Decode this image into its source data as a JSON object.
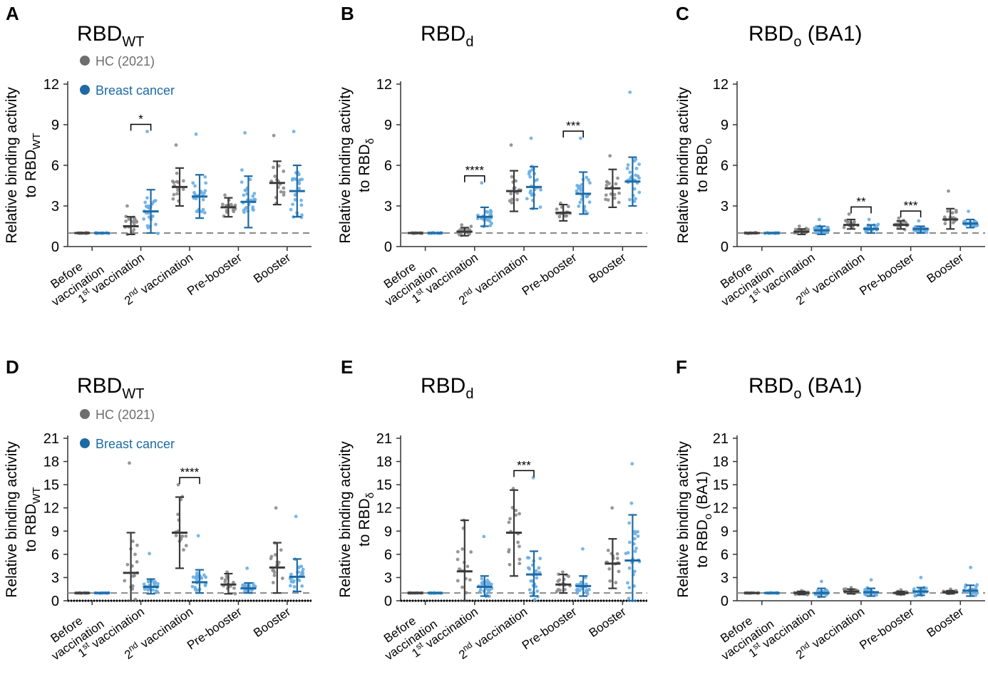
{
  "legend": {
    "hc_label": "HC (2021)",
    "bc_label": "Breast cancer"
  },
  "colors": {
    "hc_point": "#8c8c8c",
    "hc_bar": "#3a3a3a",
    "bc_point": "#6aaee3",
    "bc_bar": "#1d6aa5",
    "axis": "#333333",
    "ref_line": "#8a8a8a",
    "legend_hc": "#6e6e6e",
    "legend_bc": "#1d6aa5"
  },
  "chart_data": [
    {
      "letter": "A",
      "type": "scatter",
      "title_main": "RBD",
      "title_sub": "WT",
      "title_tail": "",
      "ylabel_line1": "Relative binding activity",
      "ylabel_line2_main": "to RBD",
      "ylabel_line2_sub": "WT",
      "ylabel_line2_tail": "",
      "yticks": [
        "0",
        "3",
        "6",
        "9",
        "12"
      ],
      "ylim": [
        0,
        12
      ],
      "show_legend": true,
      "zero_dotted": false,
      "groups": [
        {
          "label": "Before vaccination",
          "hc": {
            "mean": 1.0,
            "lo": 1.0,
            "hi": 1.0,
            "max": 1.0
          },
          "bc": {
            "mean": 1.0,
            "lo": 1.0,
            "hi": 1.0,
            "max": 1.0
          }
        },
        {
          "label": "1st vaccination",
          "hc": {
            "mean": 1.5,
            "lo": 0.9,
            "hi": 2.2,
            "max": 3.0
          },
          "bc": {
            "mean": 2.6,
            "lo": 1.0,
            "hi": 4.2,
            "max": 8.5
          },
          "sig": "*"
        },
        {
          "label": "2nd vaccination",
          "hc": {
            "mean": 4.4,
            "lo": 3.0,
            "hi": 5.8,
            "max": 7.5
          },
          "bc": {
            "mean": 3.7,
            "lo": 2.1,
            "hi": 5.3,
            "max": 8.3
          }
        },
        {
          "label": "Pre-booster",
          "hc": {
            "mean": 2.9,
            "lo": 2.2,
            "hi": 3.6,
            "max": 3.8
          },
          "bc": {
            "mean": 3.3,
            "lo": 1.4,
            "hi": 5.2,
            "max": 8.4
          }
        },
        {
          "label": "Booster",
          "hc": {
            "mean": 4.7,
            "lo": 3.1,
            "hi": 6.3,
            "max": 8.2
          },
          "bc": {
            "mean": 4.1,
            "lo": 2.2,
            "hi": 6.0,
            "max": 8.5
          }
        }
      ]
    },
    {
      "letter": "B",
      "type": "scatter",
      "title_main": "RBD",
      "title_sub": "d",
      "title_tail": "",
      "ylabel_line1": "Relative binding activity",
      "ylabel_line2_main": "to RBD",
      "ylabel_line2_sub": "δ",
      "ylabel_line2_tail": "",
      "yticks": [
        "0",
        "3",
        "6",
        "9",
        "12"
      ],
      "ylim": [
        0,
        12
      ],
      "show_legend": false,
      "zero_dotted": false,
      "groups": [
        {
          "label": "Before vaccination",
          "hc": {
            "mean": 1.0,
            "lo": 1.0,
            "hi": 1.0,
            "max": 1.0
          },
          "bc": {
            "mean": 1.0,
            "lo": 1.0,
            "hi": 1.0,
            "max": 1.0
          }
        },
        {
          "label": "1st vaccination",
          "hc": {
            "mean": 1.1,
            "lo": 0.8,
            "hi": 1.4,
            "max": 1.6
          },
          "bc": {
            "mean": 2.2,
            "lo": 1.5,
            "hi": 2.9,
            "max": 4.7
          },
          "sig": "****"
        },
        {
          "label": "2nd vaccination",
          "hc": {
            "mean": 4.1,
            "lo": 2.6,
            "hi": 5.6,
            "max": 7.5
          },
          "bc": {
            "mean": 4.4,
            "lo": 2.8,
            "hi": 5.9,
            "max": 8.0
          }
        },
        {
          "label": "Pre-booster",
          "hc": {
            "mean": 2.5,
            "lo": 1.9,
            "hi": 3.1,
            "max": 3.2
          },
          "bc": {
            "mean": 3.9,
            "lo": 2.4,
            "hi": 5.5,
            "max": 8.0
          },
          "sig": "***"
        },
        {
          "label": "Booster",
          "hc": {
            "mean": 4.3,
            "lo": 2.9,
            "hi": 5.7,
            "max": 6.7
          },
          "bc": {
            "mean": 4.8,
            "lo": 3.0,
            "hi": 6.6,
            "max": 11.4
          }
        }
      ]
    },
    {
      "letter": "C",
      "type": "scatter",
      "title_main": "RBD",
      "title_sub": "o",
      "title_tail": " (BA1)",
      "ylabel_line1": "Relative binding activity",
      "ylabel_line2_main": "to RBD",
      "ylabel_line2_sub": "o",
      "ylabel_line2_tail": "",
      "yticks": [
        "0",
        "3",
        "6",
        "9",
        "12"
      ],
      "ylim": [
        0,
        12
      ],
      "show_legend": false,
      "zero_dotted": false,
      "groups": [
        {
          "label": "Before vaccination",
          "hc": {
            "mean": 1.0,
            "lo": 1.0,
            "hi": 1.0,
            "max": 1.0
          },
          "bc": {
            "mean": 1.0,
            "lo": 1.0,
            "hi": 1.0,
            "max": 1.0
          }
        },
        {
          "label": "1st vaccination",
          "hc": {
            "mean": 1.1,
            "lo": 0.9,
            "hi": 1.3,
            "max": 1.5
          },
          "bc": {
            "mean": 1.2,
            "lo": 0.9,
            "hi": 1.5,
            "max": 2.0
          }
        },
        {
          "label": "2nd vaccination",
          "hc": {
            "mean": 1.6,
            "lo": 1.3,
            "hi": 2.0,
            "max": 2.4
          },
          "bc": {
            "mean": 1.3,
            "lo": 1.0,
            "hi": 1.6,
            "max": 2.0
          },
          "sig": "**"
        },
        {
          "label": "Pre-booster",
          "hc": {
            "mean": 1.6,
            "lo": 1.3,
            "hi": 1.9,
            "max": 2.1
          },
          "bc": {
            "mean": 1.3,
            "lo": 1.0,
            "hi": 1.5,
            "max": 1.9
          },
          "sig": "***"
        },
        {
          "label": "Booster",
          "hc": {
            "mean": 2.0,
            "lo": 1.3,
            "hi": 2.8,
            "max": 4.1
          },
          "bc": {
            "mean": 1.7,
            "lo": 1.4,
            "hi": 2.0,
            "max": 2.6
          }
        }
      ]
    },
    {
      "letter": "D",
      "type": "scatter",
      "title_main": "RBD",
      "title_sub": "WT",
      "title_tail": "",
      "ylabel_line1": "Relative binding activity",
      "ylabel_line2_main": "to RBD",
      "ylabel_line2_sub": "WT",
      "ylabel_line2_tail": "",
      "yticks": [
        "0",
        "3",
        "6",
        "9",
        "12",
        "15",
        "18",
        "21"
      ],
      "ylim": [
        0,
        21
      ],
      "show_legend": true,
      "zero_dotted": true,
      "groups": [
        {
          "label": "Before vaccination",
          "hc": {
            "mean": 1.0,
            "lo": 1.0,
            "hi": 1.0,
            "max": 1.0
          },
          "bc": {
            "mean": 1.0,
            "lo": 1.0,
            "hi": 1.0,
            "max": 1.0
          }
        },
        {
          "label": "1st vaccination",
          "hc": {
            "mean": 3.6,
            "lo": 0.0,
            "hi": 8.8,
            "max": 17.8
          },
          "bc": {
            "mean": 1.8,
            "lo": 0.9,
            "hi": 2.8,
            "max": 6.1
          }
        },
        {
          "label": "2nd vaccination",
          "hc": {
            "mean": 8.8,
            "lo": 4.2,
            "hi": 13.4,
            "max": 15.0
          },
          "bc": {
            "mean": 2.4,
            "lo": 1.0,
            "hi": 4.0,
            "max": 8.4
          },
          "sig": "****"
        },
        {
          "label": "Pre-booster",
          "hc": {
            "mean": 2.1,
            "lo": 0.9,
            "hi": 3.5,
            "max": 3.7
          },
          "bc": {
            "mean": 1.6,
            "lo": 1.0,
            "hi": 2.3,
            "max": 4.2
          }
        },
        {
          "label": "Booster",
          "hc": {
            "mean": 4.3,
            "lo": 1.0,
            "hi": 7.5,
            "max": 12.0
          },
          "bc": {
            "mean": 3.1,
            "lo": 1.2,
            "hi": 5.4,
            "max": 10.9
          }
        }
      ]
    },
    {
      "letter": "E",
      "type": "scatter",
      "title_main": "RBD",
      "title_sub": "d",
      "title_tail": "",
      "ylabel_line1": "Relative binding activity",
      "ylabel_line2_main": "to RBD",
      "ylabel_line2_sub": "δ",
      "ylabel_line2_tail": "",
      "yticks": [
        "0",
        "3",
        "6",
        "9",
        "12",
        "15",
        "18",
        "21"
      ],
      "ylim": [
        0,
        21
      ],
      "show_legend": false,
      "zero_dotted": true,
      "groups": [
        {
          "label": "Before vaccination",
          "hc": {
            "mean": 1.0,
            "lo": 1.0,
            "hi": 1.0,
            "max": 1.0
          },
          "bc": {
            "mean": 1.0,
            "lo": 1.0,
            "hi": 1.0,
            "max": 1.0
          }
        },
        {
          "label": "1st vaccination",
          "hc": {
            "mean": 3.8,
            "lo": 0.0,
            "hi": 10.4,
            "max": 10.4
          },
          "bc": {
            "mean": 1.8,
            "lo": 0.6,
            "hi": 3.2,
            "max": 8.3
          }
        },
        {
          "label": "2nd vaccination",
          "hc": {
            "mean": 8.8,
            "lo": 3.2,
            "hi": 14.3,
            "max": 14.5
          },
          "bc": {
            "mean": 3.4,
            "lo": 0.6,
            "hi": 6.4,
            "max": 15.9
          },
          "sig": "***"
        },
        {
          "label": "Pre-booster",
          "hc": {
            "mean": 2.1,
            "lo": 1.0,
            "hi": 3.4,
            "max": 3.7
          },
          "bc": {
            "mean": 1.9,
            "lo": 0.6,
            "hi": 3.2,
            "max": 6.7
          }
        },
        {
          "label": "Booster",
          "hc": {
            "mean": 4.8,
            "lo": 1.6,
            "hi": 8.0,
            "max": 12.0
          },
          "bc": {
            "mean": 5.2,
            "lo": 0.0,
            "hi": 11.1,
            "max": 17.7
          }
        }
      ]
    },
    {
      "letter": "F",
      "type": "scatter",
      "title_main": "RBD",
      "title_sub": "o",
      "title_tail": " (BA1)",
      "ylabel_line1": "Relative binding activity",
      "ylabel_line2_main": "to RBD",
      "ylabel_line2_sub": "o",
      "ylabel_line2_tail": " (BA1)",
      "yticks": [
        "0",
        "3",
        "6",
        "9",
        "12",
        "15",
        "18",
        "21"
      ],
      "ylim": [
        0,
        21
      ],
      "show_legend": false,
      "zero_dotted": false,
      "groups": [
        {
          "label": "Before vaccination",
          "hc": {
            "mean": 1.0,
            "lo": 1.0,
            "hi": 1.0,
            "max": 1.0
          },
          "bc": {
            "mean": 1.0,
            "lo": 1.0,
            "hi": 1.0,
            "max": 1.0
          }
        },
        {
          "label": "1st vaccination",
          "hc": {
            "mean": 1.0,
            "lo": 0.8,
            "hi": 1.2,
            "max": 1.3
          },
          "bc": {
            "mean": 1.0,
            "lo": 0.5,
            "hi": 1.6,
            "max": 2.5
          }
        },
        {
          "label": "2nd vaccination",
          "hc": {
            "mean": 1.2,
            "lo": 0.9,
            "hi": 1.5,
            "max": 1.7
          },
          "bc": {
            "mean": 1.1,
            "lo": 0.6,
            "hi": 1.6,
            "max": 2.7
          }
        },
        {
          "label": "Pre-booster",
          "hc": {
            "mean": 1.0,
            "lo": 0.8,
            "hi": 1.2,
            "max": 1.4
          },
          "bc": {
            "mean": 1.2,
            "lo": 0.7,
            "hi": 1.7,
            "max": 3.0
          }
        },
        {
          "label": "Booster",
          "hc": {
            "mean": 1.1,
            "lo": 0.9,
            "hi": 1.3,
            "max": 1.5
          },
          "bc": {
            "mean": 1.3,
            "lo": 0.6,
            "hi": 2.0,
            "max": 4.3
          }
        }
      ]
    }
  ]
}
